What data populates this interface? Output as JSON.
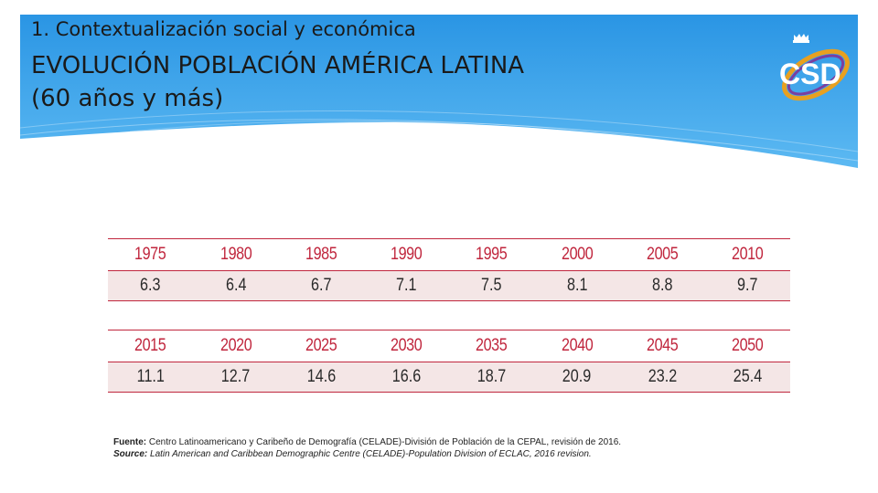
{
  "header": {
    "subtitle": "1. Contextualización social y económica",
    "title_line1": "EVOLUCIÓN POBLACIÓN AMÉRICA LATINA",
    "title_line2": "(60 años y más)",
    "logo_text": "CSD"
  },
  "table_top": {
    "years": [
      "1975",
      "1980",
      "1985",
      "1990",
      "1995",
      "2000",
      "2005",
      "2010"
    ],
    "values": [
      "6.3",
      "6.4",
      "6.7",
      "7.1",
      "7.5",
      "8.1",
      "8.8",
      "9.7"
    ]
  },
  "table_bottom": {
    "years": [
      "2015",
      "2020",
      "2025",
      "2030",
      "2035",
      "2040",
      "2045",
      "2050"
    ],
    "values": [
      "11.1",
      "12.7",
      "14.6",
      "16.6",
      "18.7",
      "20.9",
      "23.2",
      "25.4"
    ]
  },
  "source": {
    "es_label": "Fuente:",
    "es_text": " Centro Latinoamericano y Caribeño de Demografía (CELADE)-División de Población de la CEPAL, revisión de 2016.",
    "en_label": "Source:",
    "en_text": " Latin American and Caribbean Demographic Centre (CELADE)-Population Division of ECLAC, 2016 revision."
  },
  "colors": {
    "banner_top": "#1f8fe0",
    "banner_bottom": "#6ec4f5",
    "table_accent": "#c0263d",
    "row_fill": "#f4e6e6"
  }
}
